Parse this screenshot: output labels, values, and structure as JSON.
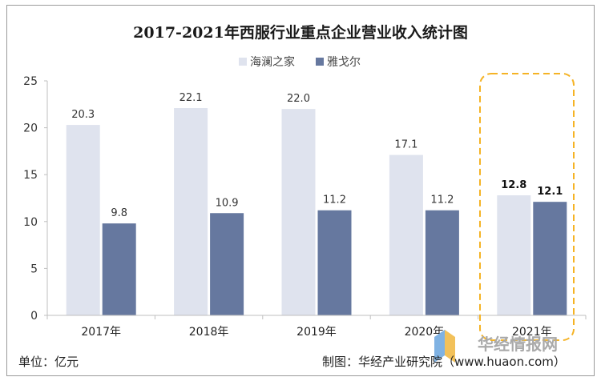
{
  "chart_data": {
    "type": "bar",
    "title": "2017-2021年西服行业重点企业营业收入统计图",
    "categories": [
      "2017年",
      "2018年",
      "2019年",
      "2020年",
      "2021年"
    ],
    "series": [
      {
        "name": "海澜之家",
        "values": [
          20.3,
          22.1,
          22.0,
          17.1,
          12.8
        ],
        "color": "#dfe3ee"
      },
      {
        "name": "雅戈尔",
        "values": [
          9.8,
          10.9,
          11.2,
          11.2,
          12.1
        ],
        "color": "#66789f"
      }
    ],
    "value_labels": [
      [
        "20.3",
        "22.1",
        "22.0",
        "17.1",
        "12.8"
      ],
      [
        "9.8",
        "10.9",
        "11.2",
        "11.2",
        "12.1"
      ]
    ],
    "highlight_category": "2021年",
    "highlight_color": "#f5b325",
    "ylim": [
      0,
      25
    ],
    "yticks": [
      "0",
      "5",
      "10",
      "15",
      "20",
      "25"
    ],
    "xlabel": "",
    "ylabel": "",
    "legend_position": "top-center"
  },
  "footer": {
    "unit": "单位：亿元",
    "source": "制图：华经产业研究院（www.huaon.com）"
  },
  "watermark": {
    "text": "华经情报网"
  }
}
